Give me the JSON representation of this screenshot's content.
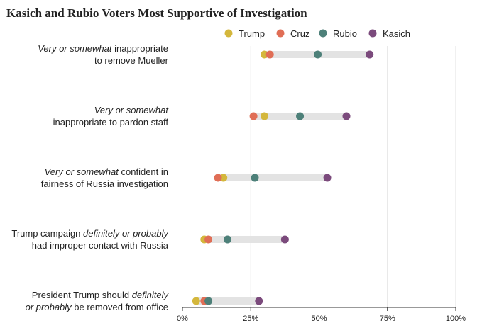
{
  "chart_data": {
    "type": "dot",
    "title": "Kasich and Rubio Voters Most Supportive of Investigation",
    "xlim": [
      0,
      100
    ],
    "x_ticks": [
      "0%",
      "25%",
      "50%",
      "75%",
      "100%"
    ],
    "grid": true,
    "legend_position": "top-right",
    "categories": [
      [
        [
          {
            "t": "Very or somewhat",
            "i": true
          },
          {
            "t": " inappropriate",
            "i": false
          }
        ],
        [
          {
            "t": "to remove Mueller",
            "i": false
          }
        ]
      ],
      [
        [
          {
            "t": "Very or somewhat",
            "i": true
          }
        ],
        [
          {
            "t": "inappropriate to pardon staff",
            "i": false
          }
        ]
      ],
      [
        [
          {
            "t": "Very or somewhat",
            "i": true
          },
          {
            "t": " confident in",
            "i": false
          }
        ],
        [
          {
            "t": "fairness of Russia investigation",
            "i": false
          }
        ]
      ],
      [
        [
          {
            "t": "Trump campaign ",
            "i": false
          },
          {
            "t": "definitely or probably",
            "i": true
          }
        ],
        [
          {
            "t": "had improper contact with Russia",
            "i": false
          }
        ]
      ],
      [
        [
          {
            "t": "President Trump should ",
            "i": false
          },
          {
            "t": "definitely",
            "i": true
          }
        ],
        [
          {
            "t": "or probably",
            "i": true
          },
          {
            "t": " be removed from office",
            "i": false
          }
        ]
      ]
    ],
    "series": [
      {
        "name": "Trump",
        "color": "#d4b73c",
        "values": [
          30,
          30,
          15,
          8,
          5
        ]
      },
      {
        "name": "Cruz",
        "color": "#e06e56",
        "values": [
          32,
          26,
          13,
          9.5,
          8
        ]
      },
      {
        "name": "Rubio",
        "color": "#4d8079",
        "values": [
          49.5,
          43,
          26.5,
          16.5,
          9.5
        ]
      },
      {
        "name": "Kasich",
        "color": "#7b4a7c",
        "values": [
          68.5,
          60,
          53,
          37.5,
          28
        ]
      }
    ],
    "range_bar_color": "#e3e3e3"
  }
}
